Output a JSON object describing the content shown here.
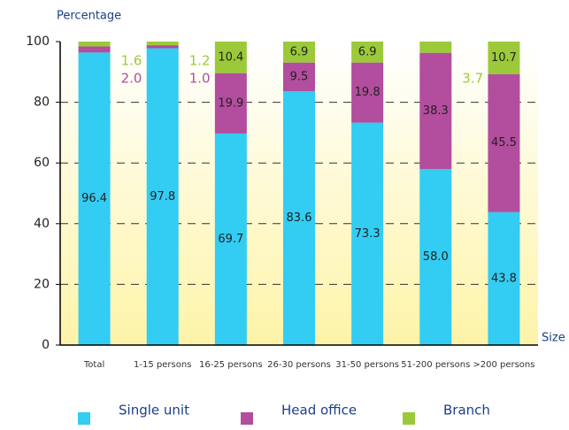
{
  "chart_data": {
    "type": "stacked_bar",
    "y_label": "Percentage",
    "x_label": "Size",
    "categories": [
      "Total",
      "1-15 persons",
      "16-25 persons",
      "26-30 persons",
      "31-50 persons",
      "51-200 persons",
      ">200 persons"
    ],
    "series": [
      {
        "name": "Single unit",
        "color": "#33ccf2",
        "values": [
          96.4,
          97.8,
          69.7,
          83.6,
          73.3,
          58.0,
          43.8
        ],
        "value_labels": [
          "96.4",
          "97.8",
          "69.7",
          "83.6",
          "73.3",
          "58.0",
          "43.8"
        ]
      },
      {
        "name": "Head office",
        "color": "#b34d9e",
        "values": [
          2.0,
          1.0,
          19.9,
          9.5,
          19.8,
          38.3,
          45.5
        ],
        "value_labels": [
          "2.0",
          "1.0",
          "19.9",
          "9.5",
          "19.8",
          "38.3",
          "45.5"
        ]
      },
      {
        "name": "Branch",
        "color": "#9cc93a",
        "values": [
          1.6,
          1.2,
          10.4,
          6.9,
          6.9,
          3.7,
          10.7
        ],
        "value_labels": [
          "1.6",
          "1.2",
          "10.4",
          "6.9",
          "6.9",
          "3.7",
          "10.7"
        ]
      }
    ],
    "ylim": [
      0,
      100
    ],
    "yticks": [
      0,
      20,
      40,
      60,
      80,
      100
    ],
    "grid": true
  }
}
